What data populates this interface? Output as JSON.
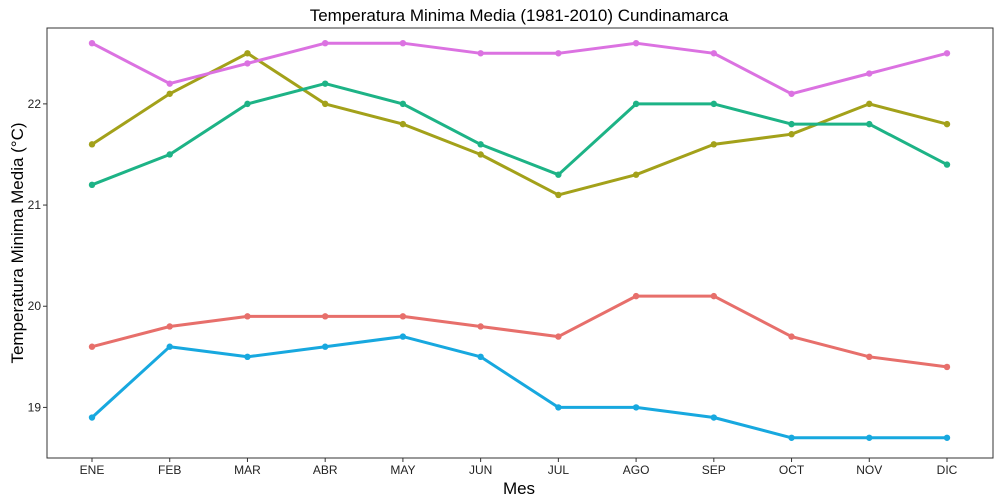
{
  "chart_data": {
    "type": "line",
    "title": "Temperatura Minima Media (1981-2010)  Cundinamarca",
    "xlabel": "Mes",
    "ylabel": "Temperatura Minima Media  (°C)",
    "categories": [
      "ENE",
      "FEB",
      "MAR",
      "ABR",
      "MAY",
      "JUN",
      "JUL",
      "AGO",
      "SEP",
      "OCT",
      "NOV",
      "DIC"
    ],
    "ylim": [
      18.5,
      22.75
    ],
    "yticks": [
      19,
      20,
      21,
      22
    ],
    "grid": false,
    "legend": "none",
    "series": [
      {
        "color": "#E76F6B",
        "values": [
          19.6,
          19.8,
          19.9,
          19.9,
          19.9,
          19.8,
          19.7,
          20.1,
          20.1,
          19.7,
          19.5,
          19.4
        ]
      },
      {
        "color": "#A3A11A",
        "values": [
          21.6,
          22.1,
          22.5,
          22.0,
          21.8,
          21.5,
          21.1,
          21.3,
          21.6,
          21.7,
          22.0,
          21.8
        ]
      },
      {
        "color": "#1DB386",
        "values": [
          21.2,
          21.5,
          22.0,
          22.2,
          22.0,
          21.6,
          21.3,
          22.0,
          22.0,
          21.8,
          21.8,
          21.4
        ]
      },
      {
        "color": "#17A8DF",
        "values": [
          18.9,
          19.6,
          19.5,
          19.6,
          19.7,
          19.5,
          19.0,
          19.0,
          18.9,
          18.7,
          18.7,
          18.7
        ]
      },
      {
        "color": "#DB72E1",
        "values": [
          22.6,
          22.2,
          22.4,
          22.6,
          22.6,
          22.5,
          22.5,
          22.6,
          22.5,
          22.1,
          22.3,
          22.5
        ]
      }
    ]
  }
}
